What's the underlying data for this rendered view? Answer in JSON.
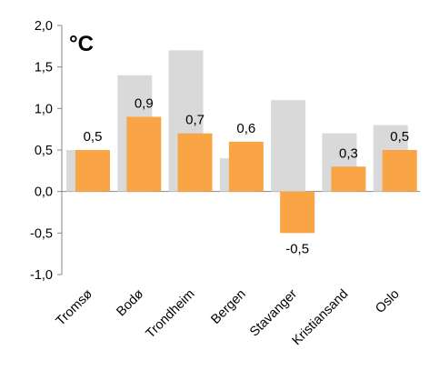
{
  "chart_data": {
    "type": "bar",
    "unit_label": "°C",
    "categories": [
      "Tromsø",
      "Bodø",
      "Trondheim",
      "Bergen",
      "Stavanger",
      "Kristiansand",
      "Oslo"
    ],
    "series": [
      {
        "values": [
          0.5,
          1.4,
          1.7,
          0.4,
          1.1,
          0.7,
          0.8
        ],
        "color": "#d9d9d9"
      },
      {
        "values": [
          0.5,
          0.9,
          0.7,
          0.6,
          -0.5,
          0.3,
          0.5
        ],
        "color": "#f9a545",
        "data_labels": [
          "0,5",
          "0,9",
          "0,7",
          "0,6",
          "-0,5",
          "0,3",
          "0,5"
        ]
      }
    ],
    "yticks": [
      2.0,
      1.5,
      1.0,
      0.5,
      0.0,
      -0.5,
      -1.0
    ],
    "ytick_labels": [
      "2,0",
      "1,5",
      "1,0",
      "0,5",
      "0,0",
      "-0,5",
      "-1,0"
    ],
    "ylim": [
      -1.0,
      2.0
    ],
    "grid": false,
    "legend": "none"
  }
}
